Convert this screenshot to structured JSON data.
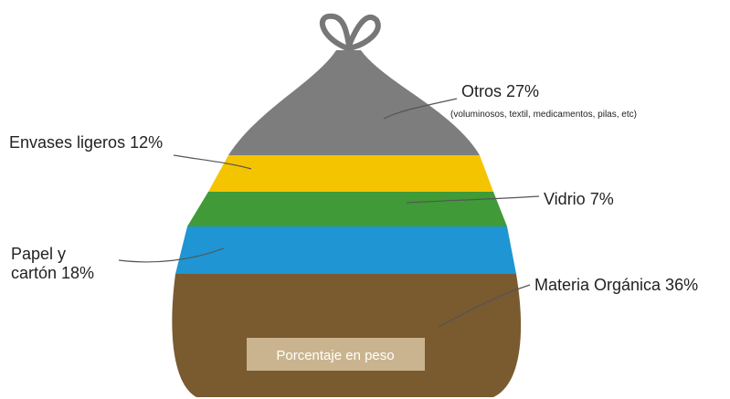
{
  "labels": {
    "otros": "Otros 27%",
    "otros_detail": "(voluminosos, textil, medicamentos, pilas, etc)",
    "envases": "Envases ligeros 12%",
    "vidrio": "Vidrio 7%",
    "papel_1": "Papel y",
    "papel_2": "cartón 18%",
    "organica": "Materia Orgánica 36%",
    "caption": "Porcentaje en peso"
  }
}
